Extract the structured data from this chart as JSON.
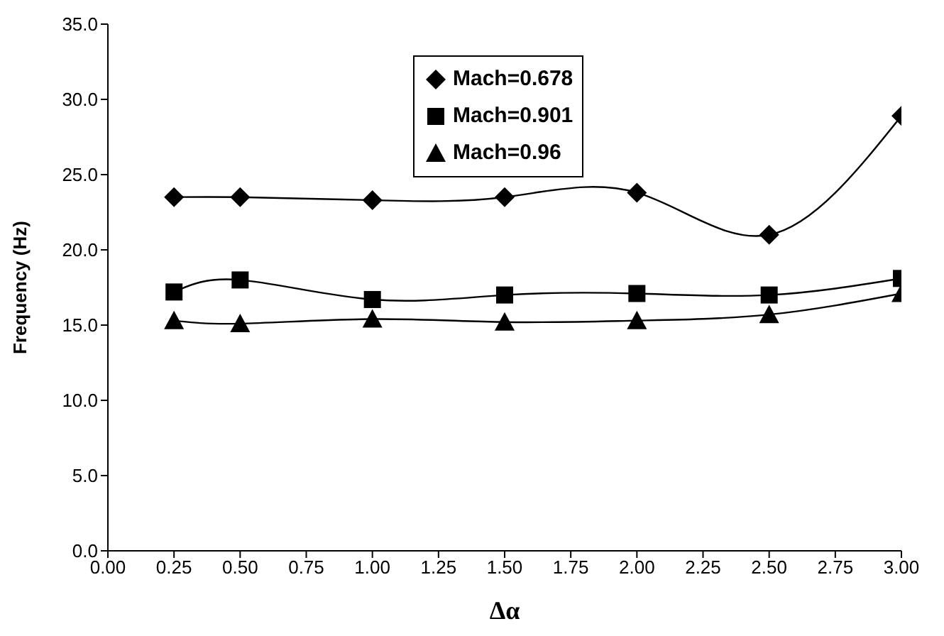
{
  "chart_data": {
    "type": "line",
    "xlabel": "Δα",
    "ylabel": "Frequency (Hz)",
    "x": [
      0.25,
      0.5,
      1.0,
      1.5,
      2.0,
      2.5,
      3.0
    ],
    "series": [
      {
        "name": "Mach=0.678",
        "color": "#000000",
        "marker": "diamond",
        "values": [
          23.5,
          23.5,
          23.3,
          23.5,
          23.8,
          21.0,
          28.9
        ]
      },
      {
        "name": "Mach=0.901",
        "color": "#000000",
        "marker": "square",
        "values": [
          17.2,
          18.0,
          16.7,
          17.0,
          17.1,
          17.0,
          18.1
        ]
      },
      {
        "name": "Mach=0.96",
        "color": "#000000",
        "marker": "triangle",
        "values": [
          15.3,
          15.1,
          15.4,
          15.2,
          15.3,
          15.7,
          17.1
        ]
      }
    ],
    "xlim": [
      0,
      3
    ],
    "xticks": [
      {
        "value": 0,
        "label": "0.00"
      },
      {
        "value": 0.25,
        "label": "0.25"
      },
      {
        "value": 0.5,
        "label": "0.50"
      },
      {
        "value": 0.75,
        "label": "0.75"
      },
      {
        "value": 1,
        "label": "1.00"
      },
      {
        "value": 1.25,
        "label": "1.25"
      },
      {
        "value": 1.5,
        "label": "1.50"
      },
      {
        "value": 1.75,
        "label": "1.75"
      },
      {
        "value": 2,
        "label": "2.00"
      },
      {
        "value": 2.25,
        "label": "2.25"
      },
      {
        "value": 2.5,
        "label": "2.50"
      },
      {
        "value": 2.75,
        "label": "2.75"
      },
      {
        "value": 3,
        "label": "3.00"
      }
    ],
    "ylim": [
      0,
      35
    ],
    "yticks": [
      {
        "value": 0,
        "label": "0.0"
      },
      {
        "value": 5,
        "label": "5.0"
      },
      {
        "value": 10,
        "label": "10.0"
      },
      {
        "value": 15,
        "label": "15.0"
      },
      {
        "value": 20,
        "label": "20.0"
      },
      {
        "value": 25,
        "label": "25.0"
      },
      {
        "value": 30,
        "label": "30.0"
      },
      {
        "value": 35,
        "label": "35.0"
      }
    ],
    "grid": false,
    "legend": "top",
    "line_style": "solid"
  }
}
